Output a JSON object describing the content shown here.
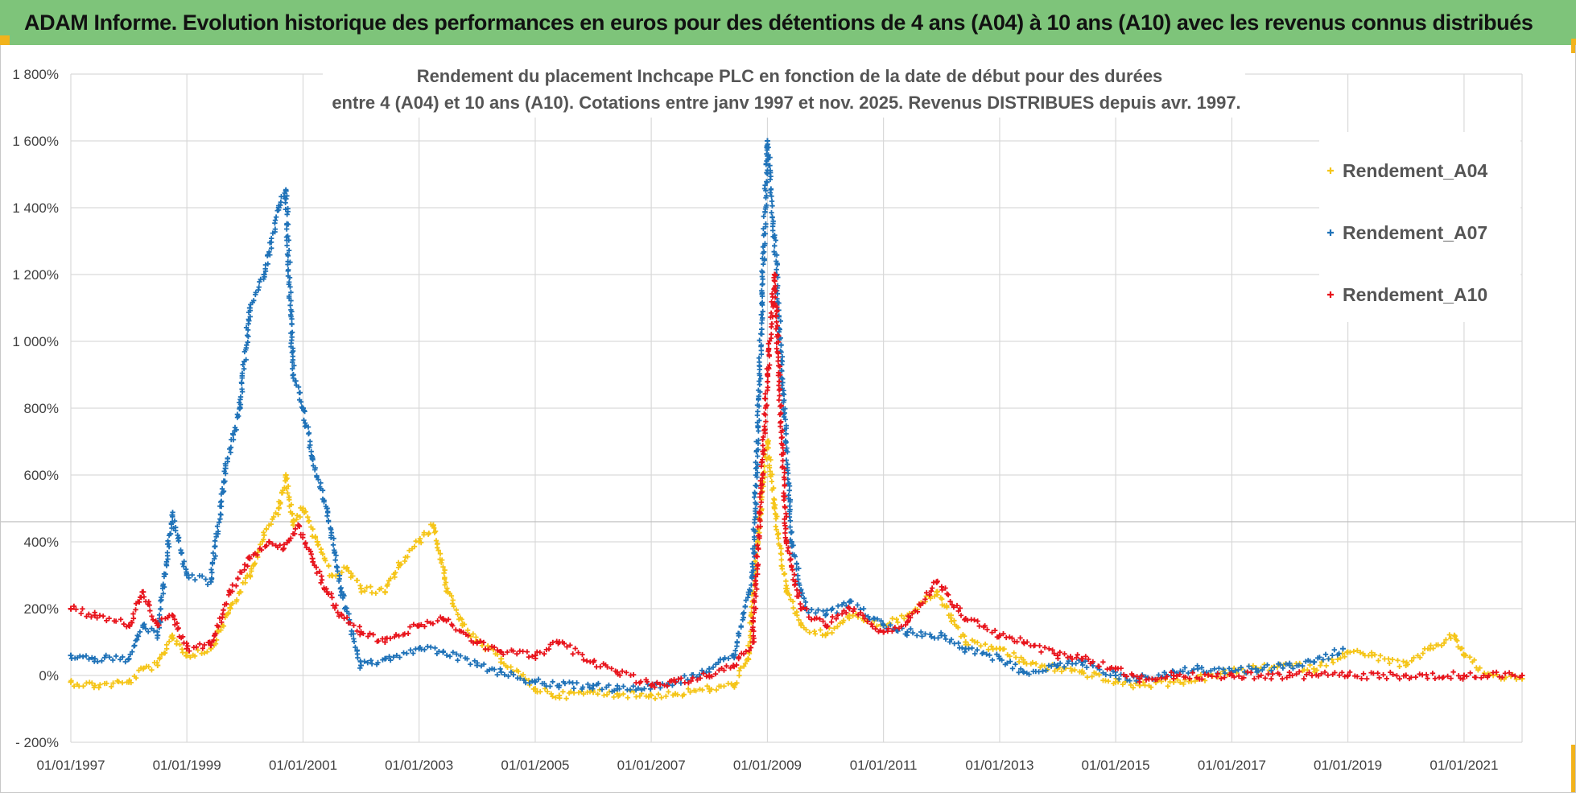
{
  "header": {
    "banner_title": "ADAM Informe. Evolution historique des performances en euros pour des détentions de 4 ans (A04) à 10 ans (A10) avec les revenus connus distribués"
  },
  "colors": {
    "banner_bg": "#7ec47a",
    "accent_yellow": "#f2b31c",
    "grid": "#d9d9d9",
    "series_A04": "#f5c518",
    "series_A07": "#1f72b8",
    "series_A10": "#e8141c"
  },
  "chart_data": {
    "type": "scatter",
    "title": [
      "Rendement du placement Inchcape PLC en fonction de la date de début pour des durées",
      "entre 4 (A04) et 10 ans (A10).  Cotations entre janv 1997 et nov. 2025. Revenus DISTRIBUES depuis avr. 1997."
    ],
    "xlabel": "",
    "ylabel": "",
    "x_range": [
      "1997-01-01",
      "2022-01-01"
    ],
    "ylim": [
      -200,
      1800
    ],
    "y_ticks": [
      -200,
      0,
      200,
      400,
      600,
      800,
      1000,
      1200,
      1400,
      1600,
      1800
    ],
    "y_tick_labels": [
      "- 200%",
      "0%",
      "200%",
      "400%",
      "600%",
      "800%",
      "1 000%",
      "1 200%",
      "1 400%",
      "1 600%",
      "1 800%"
    ],
    "x_ticks": [
      "1997-01-01",
      "1999-01-01",
      "2001-01-01",
      "2003-01-01",
      "2005-01-01",
      "2007-01-01",
      "2009-01-01",
      "2011-01-01",
      "2013-01-01",
      "2015-01-01",
      "2017-01-01",
      "2019-01-01",
      "2021-01-01"
    ],
    "x_tick_labels": [
      "01/01/1997",
      "01/01/1999",
      "01/01/2001",
      "01/01/2003",
      "01/01/2005",
      "01/01/2007",
      "01/01/2009",
      "01/01/2011",
      "01/01/2013",
      "01/01/2015",
      "01/01/2017",
      "01/01/2019",
      "01/01/2021"
    ],
    "grid": true,
    "marker": "+",
    "legend": {
      "position": "top-right"
    },
    "series": [
      {
        "name": "Rendement_A04",
        "color": "#f5c518",
        "points": [
          [
            "1997-01-01",
            -20
          ],
          [
            "1997-06-01",
            -30
          ],
          [
            "1998-01-01",
            -20
          ],
          [
            "1998-04-01",
            20
          ],
          [
            "1998-07-01",
            30
          ],
          [
            "1998-10-01",
            120
          ],
          [
            "1999-01-01",
            60
          ],
          [
            "1999-06-01",
            80
          ],
          [
            "1999-10-01",
            200
          ],
          [
            "2000-02-01",
            300
          ],
          [
            "2000-05-01",
            420
          ],
          [
            "2000-08-01",
            500
          ],
          [
            "2000-09-15",
            600
          ],
          [
            "2000-11-01",
            450
          ],
          [
            "2001-01-01",
            500
          ],
          [
            "2001-04-01",
            400
          ],
          [
            "2001-07-01",
            300
          ],
          [
            "2001-10-01",
            320
          ],
          [
            "2002-01-01",
            260
          ],
          [
            "2002-06-01",
            250
          ],
          [
            "2002-09-01",
            330
          ],
          [
            "2003-01-01",
            400
          ],
          [
            "2003-04-01",
            450
          ],
          [
            "2003-07-01",
            250
          ],
          [
            "2003-10-01",
            150
          ],
          [
            "2004-01-01",
            100
          ],
          [
            "2004-06-01",
            50
          ],
          [
            "2005-01-01",
            -40
          ],
          [
            "2005-06-01",
            -60
          ],
          [
            "2006-01-01",
            -50
          ],
          [
            "2006-06-01",
            -55
          ],
          [
            "2007-01-01",
            -60
          ],
          [
            "2007-06-01",
            -55
          ],
          [
            "2008-01-01",
            -40
          ],
          [
            "2008-06-01",
            -30
          ],
          [
            "2008-09-01",
            50
          ],
          [
            "2008-11-01",
            400
          ],
          [
            "2009-01-01",
            700
          ],
          [
            "2009-02-15",
            500
          ],
          [
            "2009-05-01",
            250
          ],
          [
            "2009-08-01",
            150
          ],
          [
            "2010-01-01",
            120
          ],
          [
            "2010-06-01",
            180
          ],
          [
            "2011-01-01",
            150
          ],
          [
            "2011-06-01",
            180
          ],
          [
            "2011-12-01",
            250
          ],
          [
            "2012-03-01",
            180
          ],
          [
            "2012-06-01",
            100
          ],
          [
            "2013-01-01",
            80
          ],
          [
            "2013-06-01",
            40
          ],
          [
            "2014-01-01",
            20
          ],
          [
            "2014-06-01",
            10
          ],
          [
            "2015-01-01",
            -20
          ],
          [
            "2015-06-01",
            -30
          ],
          [
            "2016-01-01",
            -20
          ],
          [
            "2016-06-01",
            -10
          ],
          [
            "2017-01-01",
            10
          ],
          [
            "2017-06-01",
            20
          ],
          [
            "2018-01-01",
            30
          ],
          [
            "2018-06-01",
            20
          ],
          [
            "2019-01-01",
            70
          ],
          [
            "2019-06-01",
            60
          ],
          [
            "2020-01-01",
            30
          ],
          [
            "2020-06-01",
            80
          ],
          [
            "2020-11-01",
            120
          ],
          [
            "2021-01-01",
            60
          ],
          [
            "2021-06-01",
            0
          ],
          [
            "2022-01-01",
            -10
          ]
        ]
      },
      {
        "name": "Rendement_A07",
        "color": "#1f72b8",
        "points": [
          [
            "1997-01-01",
            60
          ],
          [
            "1997-06-01",
            50
          ],
          [
            "1998-01-01",
            50
          ],
          [
            "1998-04-01",
            150
          ],
          [
            "1998-07-01",
            120
          ],
          [
            "1998-10-01",
            480
          ],
          [
            "1999-01-01",
            300
          ],
          [
            "1999-06-01",
            280
          ],
          [
            "1999-09-01",
            620
          ],
          [
            "1999-12-01",
            800
          ],
          [
            "2000-02-01",
            1100
          ],
          [
            "2000-05-01",
            1200
          ],
          [
            "2000-08-01",
            1400
          ],
          [
            "2000-09-15",
            1450
          ],
          [
            "2000-11-01",
            900
          ],
          [
            "2001-01-01",
            800
          ],
          [
            "2001-03-01",
            650
          ],
          [
            "2001-06-01",
            500
          ],
          [
            "2001-09-01",
            250
          ],
          [
            "2002-01-01",
            30
          ],
          [
            "2002-06-01",
            50
          ],
          [
            "2003-01-01",
            80
          ],
          [
            "2003-06-01",
            70
          ],
          [
            "2004-01-01",
            30
          ],
          [
            "2004-06-01",
            10
          ],
          [
            "2005-01-01",
            -20
          ],
          [
            "2005-06-01",
            -30
          ],
          [
            "2006-01-01",
            -30
          ],
          [
            "2006-06-01",
            -40
          ],
          [
            "2007-01-01",
            -30
          ],
          [
            "2007-06-01",
            -20
          ],
          [
            "2008-01-01",
            20
          ],
          [
            "2008-06-01",
            60
          ],
          [
            "2008-10-01",
            300
          ],
          [
            "2009-01-01",
            1600
          ],
          [
            "2009-03-01",
            1200
          ],
          [
            "2009-06-01",
            400
          ],
          [
            "2009-09-01",
            200
          ],
          [
            "2010-01-01",
            180
          ],
          [
            "2010-06-01",
            220
          ],
          [
            "2011-01-01",
            150
          ],
          [
            "2011-06-01",
            130
          ],
          [
            "2012-01-01",
            120
          ],
          [
            "2012-06-01",
            80
          ],
          [
            "2013-01-01",
            50
          ],
          [
            "2013-06-01",
            10
          ],
          [
            "2014-01-01",
            30
          ],
          [
            "2014-06-01",
            40
          ],
          [
            "2015-01-01",
            0
          ],
          [
            "2015-06-01",
            -10
          ],
          [
            "2016-01-01",
            10
          ],
          [
            "2016-06-01",
            20
          ],
          [
            "2017-01-01",
            10
          ],
          [
            "2017-06-01",
            20
          ],
          [
            "2018-01-01",
            30
          ],
          [
            "2018-06-01",
            40
          ],
          [
            "2018-12-01",
            80
          ]
        ]
      },
      {
        "name": "Rendement_A10",
        "color": "#e8141c",
        "points": [
          [
            "1997-01-01",
            200
          ],
          [
            "1997-06-01",
            180
          ],
          [
            "1998-01-01",
            150
          ],
          [
            "1998-04-01",
            250
          ],
          [
            "1998-07-01",
            150
          ],
          [
            "1998-10-01",
            180
          ],
          [
            "1999-01-01",
            80
          ],
          [
            "1999-06-01",
            90
          ],
          [
            "1999-10-01",
            250
          ],
          [
            "2000-02-01",
            350
          ],
          [
            "2000-06-01",
            400
          ],
          [
            "2000-09-01",
            380
          ],
          [
            "2000-12-01",
            450
          ],
          [
            "2001-03-01",
            350
          ],
          [
            "2001-06-01",
            250
          ],
          [
            "2001-09-01",
            180
          ],
          [
            "2002-01-01",
            130
          ],
          [
            "2002-06-01",
            100
          ],
          [
            "2003-01-01",
            150
          ],
          [
            "2003-06-01",
            170
          ],
          [
            "2004-01-01",
            100
          ],
          [
            "2004-06-01",
            70
          ],
          [
            "2005-01-01",
            60
          ],
          [
            "2005-06-01",
            100
          ],
          [
            "2006-01-01",
            40
          ],
          [
            "2006-06-01",
            10
          ],
          [
            "2007-01-01",
            -30
          ],
          [
            "2007-06-01",
            -20
          ],
          [
            "2008-01-01",
            0
          ],
          [
            "2008-06-01",
            30
          ],
          [
            "2008-10-01",
            100
          ],
          [
            "2009-01-01",
            900
          ],
          [
            "2009-02-15",
            1200
          ],
          [
            "2009-05-01",
            400
          ],
          [
            "2009-08-01",
            200
          ],
          [
            "2010-01-01",
            150
          ],
          [
            "2010-06-01",
            200
          ],
          [
            "2011-01-01",
            130
          ],
          [
            "2011-06-01",
            160
          ],
          [
            "2011-12-01",
            280
          ],
          [
            "2012-06-01",
            170
          ],
          [
            "2013-01-01",
            120
          ],
          [
            "2013-06-01",
            100
          ],
          [
            "2014-01-01",
            60
          ],
          [
            "2014-06-01",
            50
          ],
          [
            "2015-01-01",
            20
          ],
          [
            "2015-06-01",
            -10
          ],
          [
            "2016-01-01",
            0
          ],
          [
            "2017-01-01",
            0
          ],
          [
            "2018-01-01",
            0
          ],
          [
            "2019-01-01",
            0
          ],
          [
            "2020-01-01",
            0
          ],
          [
            "2021-01-01",
            0
          ],
          [
            "2022-01-01",
            0
          ]
        ]
      }
    ]
  }
}
